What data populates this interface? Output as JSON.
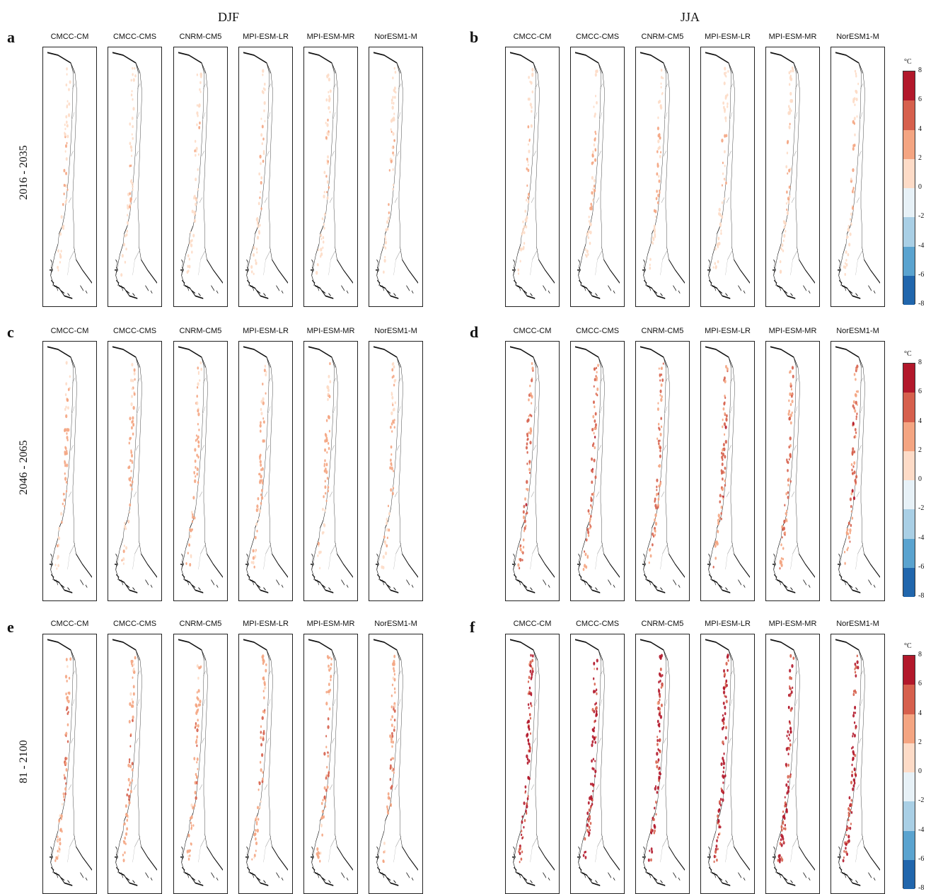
{
  "seasons": [
    "DJF",
    "JJA"
  ],
  "periods": [
    "2016 - 2035",
    "2046 - 2065",
    "81 - 2100"
  ],
  "panel_letters": [
    "a",
    "b",
    "c",
    "d",
    "e",
    "f"
  ],
  "models": [
    "CMCC-CM",
    "CMCC-CMS",
    "CNRM-CM5",
    "MPI-ESM-LR",
    "MPI-ESM-MR",
    "NorESM1-M"
  ],
  "colorbar": {
    "unit": "°C",
    "ticks": [
      "8",
      "6",
      "4",
      "2",
      "0",
      "-2",
      "-4",
      "-6",
      "-8"
    ],
    "colors": [
      "#b2182b",
      "#d6604d",
      "#f4a582",
      "#fddbc7",
      "#e7f1f7",
      "#a9cfe5",
      "#5aa3cf",
      "#2166ac"
    ]
  },
  "panels": [
    {
      "letter": "a",
      "season": "DJF",
      "period": "2016 - 2035",
      "intensity": 0.2
    },
    {
      "letter": "b",
      "season": "JJA",
      "period": "2016 - 2035",
      "intensity": 0.25
    },
    {
      "letter": "c",
      "season": "DJF",
      "period": "2046 - 2065",
      "intensity": 0.35
    },
    {
      "letter": "d",
      "season": "JJA",
      "period": "2046 - 2065",
      "intensity": 0.6
    },
    {
      "letter": "e",
      "season": "DJF",
      "period": "81 - 2100",
      "intensity": 0.5
    },
    {
      "letter": "f",
      "season": "JJA",
      "period": "81 - 2100",
      "intensity": 0.95
    }
  ]
}
